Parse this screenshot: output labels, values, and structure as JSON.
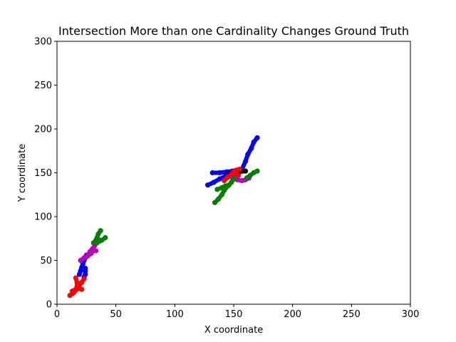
{
  "chart_data": {
    "type": "scatter",
    "title": "Intersection More than one Cardinality Changes Ground Truth",
    "xlabel": "X coordinate",
    "ylabel": "Y coordinate",
    "xlim": [
      0,
      300
    ],
    "ylim": [
      0,
      300
    ],
    "xticks": [
      "0",
      "50",
      "100",
      "150",
      "200",
      "250",
      "300"
    ],
    "yticks": [
      "0",
      "50",
      "100",
      "150",
      "200",
      "250",
      "300"
    ],
    "grid": false,
    "series": [
      {
        "color": "#0000ff",
        "points": [
          [
            19,
            34
          ],
          [
            20,
            38
          ],
          [
            21,
            42
          ],
          [
            22,
            46
          ],
          [
            23,
            50
          ],
          [
            24,
            53
          ],
          [
            25,
            56
          ]
        ]
      },
      {
        "color": "#0000ff",
        "points": [
          [
            23,
            31
          ],
          [
            24,
            34
          ],
          [
            24,
            38
          ],
          [
            24,
            41
          ]
        ]
      },
      {
        "color": "#ff0000",
        "points": [
          [
            11,
            10
          ],
          [
            13,
            12
          ],
          [
            15,
            15
          ],
          [
            17,
            18
          ],
          [
            19,
            22
          ],
          [
            21,
            25
          ],
          [
            23,
            29
          ]
        ]
      },
      {
        "color": "#ff0000",
        "points": [
          [
            14,
            13
          ],
          [
            16,
            16
          ],
          [
            17,
            20
          ],
          [
            17,
            25
          ],
          [
            16,
            30
          ]
        ]
      },
      {
        "color": "#ff0000",
        "points": [
          [
            13,
            15
          ],
          [
            16,
            17
          ],
          [
            19,
            18
          ],
          [
            21,
            17
          ]
        ]
      },
      {
        "color": "#bf00bf",
        "points": [
          [
            20,
            50
          ],
          [
            23,
            53
          ],
          [
            26,
            56
          ],
          [
            28,
            60
          ],
          [
            30,
            63
          ],
          [
            32,
            67
          ],
          [
            34,
            72
          ],
          [
            35,
            74
          ]
        ]
      },
      {
        "color": "#bf00bf",
        "points": [
          [
            26,
            55
          ],
          [
            29,
            58
          ],
          [
            31,
            61
          ],
          [
            33,
            61
          ]
        ]
      },
      {
        "color": "#008000",
        "points": [
          [
            31,
            70
          ],
          [
            33,
            73
          ],
          [
            34,
            76
          ],
          [
            35,
            80
          ],
          [
            37,
            84
          ]
        ]
      },
      {
        "color": "#008000",
        "points": [
          [
            34,
            70
          ],
          [
            36,
            72
          ],
          [
            38,
            73
          ],
          [
            41,
            76
          ]
        ]
      },
      {
        "color": "#0000ff",
        "points": [
          [
            128,
            136
          ],
          [
            133,
            139
          ],
          [
            138,
            143
          ],
          [
            143,
            146
          ],
          [
            148,
            149
          ],
          [
            153,
            151
          ],
          [
            157,
            154
          ],
          [
            160,
            163
          ],
          [
            162,
            171
          ],
          [
            165,
            178
          ],
          [
            167,
            185
          ],
          [
            170,
            190
          ]
        ]
      },
      {
        "color": "#0000ff",
        "points": [
          [
            132,
            150
          ],
          [
            138,
            150
          ],
          [
            144,
            151
          ],
          [
            149,
            152
          ],
          [
            153,
            153
          ]
        ]
      },
      {
        "color": "#000000",
        "points": [
          [
            146,
            148
          ],
          [
            150,
            149
          ],
          [
            155,
            151
          ],
          [
            160,
            152
          ]
        ]
      },
      {
        "color": "#ff0000",
        "points": [
          [
            142,
            141
          ],
          [
            145,
            145
          ],
          [
            148,
            148
          ],
          [
            150,
            151
          ],
          [
            152,
            153
          ],
          [
            155,
            154
          ]
        ]
      },
      {
        "color": "#ff0000",
        "points": [
          [
            145,
            145
          ],
          [
            148,
            147
          ],
          [
            152,
            148
          ],
          [
            154,
            147
          ]
        ]
      },
      {
        "color": "#bf00bf",
        "points": [
          [
            149,
            144
          ],
          [
            153,
            142
          ],
          [
            157,
            141
          ],
          [
            160,
            142
          ],
          [
            163,
            144
          ]
        ]
      },
      {
        "color": "#008000",
        "points": [
          [
            134,
            116
          ],
          [
            137,
            120
          ],
          [
            140,
            125
          ],
          [
            142,
            130
          ],
          [
            145,
            135
          ],
          [
            148,
            139
          ],
          [
            150,
            143
          ]
        ]
      },
      {
        "color": "#008000",
        "points": [
          [
            136,
            131
          ],
          [
            140,
            133
          ],
          [
            143,
            135
          ],
          [
            146,
            136
          ]
        ]
      },
      {
        "color": "#008000",
        "points": [
          [
            161,
            144
          ],
          [
            164,
            147
          ],
          [
            167,
            150
          ],
          [
            170,
            152
          ]
        ]
      }
    ]
  }
}
